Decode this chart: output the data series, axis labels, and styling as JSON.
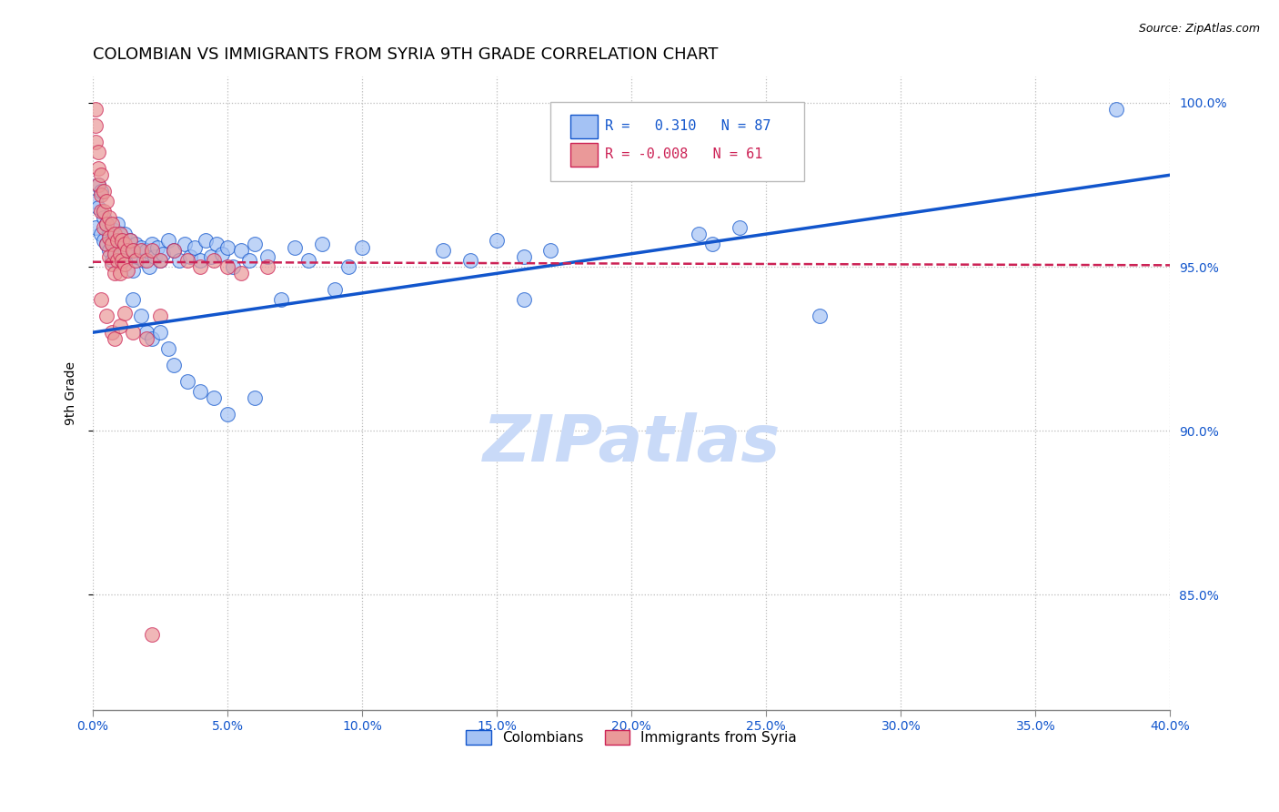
{
  "title": "COLOMBIAN VS IMMIGRANTS FROM SYRIA 9TH GRADE CORRELATION CHART",
  "source": "Source: ZipAtlas.com",
  "ylabel": "9th Grade",
  "x_min": 0.0,
  "x_max": 0.4,
  "y_min": 0.815,
  "y_max": 1.008,
  "legend_blue_R": "0.310",
  "legend_blue_N": "87",
  "legend_pink_R": "-0.008",
  "legend_pink_N": "61",
  "blue_color": "#a4c2f4",
  "pink_color": "#ea9999",
  "trend_blue_color": "#1155cc",
  "trend_pink_color": "#cc2255",
  "grid_color": "#bbbbbb",
  "watermark_color": "#c9daf8",
  "blue_trend_x": [
    0.0,
    0.4
  ],
  "blue_trend_y": [
    0.93,
    0.978
  ],
  "pink_trend_x": [
    0.0,
    0.4
  ],
  "pink_trend_y": [
    0.9515,
    0.9505
  ],
  "blue_points": [
    [
      0.001,
      0.97
    ],
    [
      0.001,
      0.962
    ],
    [
      0.002,
      0.968
    ],
    [
      0.002,
      0.975
    ],
    [
      0.003,
      0.96
    ],
    [
      0.003,
      0.973
    ],
    [
      0.004,
      0.965
    ],
    [
      0.004,
      0.958
    ],
    [
      0.005,
      0.963
    ],
    [
      0.005,
      0.957
    ],
    [
      0.006,
      0.96
    ],
    [
      0.006,
      0.955
    ],
    [
      0.007,
      0.958
    ],
    [
      0.007,
      0.952
    ],
    [
      0.008,
      0.961
    ],
    [
      0.008,
      0.955
    ],
    [
      0.009,
      0.963
    ],
    [
      0.009,
      0.957
    ],
    [
      0.01,
      0.96
    ],
    [
      0.01,
      0.953
    ],
    [
      0.011,
      0.958
    ],
    [
      0.011,
      0.952
    ],
    [
      0.012,
      0.96
    ],
    [
      0.012,
      0.954
    ],
    [
      0.013,
      0.955
    ],
    [
      0.014,
      0.958
    ],
    [
      0.015,
      0.955
    ],
    [
      0.015,
      0.949
    ],
    [
      0.016,
      0.957
    ],
    [
      0.017,
      0.953
    ],
    [
      0.018,
      0.956
    ],
    [
      0.019,
      0.952
    ],
    [
      0.02,
      0.955
    ],
    [
      0.021,
      0.95
    ],
    [
      0.022,
      0.957
    ],
    [
      0.023,
      0.953
    ],
    [
      0.024,
      0.956
    ],
    [
      0.025,
      0.952
    ],
    [
      0.026,
      0.954
    ],
    [
      0.028,
      0.958
    ],
    [
      0.03,
      0.955
    ],
    [
      0.032,
      0.952
    ],
    [
      0.034,
      0.957
    ],
    [
      0.036,
      0.953
    ],
    [
      0.038,
      0.956
    ],
    [
      0.04,
      0.952
    ],
    [
      0.042,
      0.958
    ],
    [
      0.044,
      0.953
    ],
    [
      0.046,
      0.957
    ],
    [
      0.048,
      0.954
    ],
    [
      0.05,
      0.956
    ],
    [
      0.052,
      0.95
    ],
    [
      0.055,
      0.955
    ],
    [
      0.058,
      0.952
    ],
    [
      0.06,
      0.957
    ],
    [
      0.065,
      0.953
    ],
    [
      0.07,
      0.94
    ],
    [
      0.075,
      0.956
    ],
    [
      0.08,
      0.952
    ],
    [
      0.085,
      0.957
    ],
    [
      0.09,
      0.943
    ],
    [
      0.095,
      0.95
    ],
    [
      0.1,
      0.956
    ],
    [
      0.13,
      0.955
    ],
    [
      0.14,
      0.952
    ],
    [
      0.15,
      0.958
    ],
    [
      0.16,
      0.953
    ],
    [
      0.17,
      0.955
    ],
    [
      0.225,
      0.96
    ],
    [
      0.23,
      0.957
    ],
    [
      0.24,
      0.962
    ],
    [
      0.27,
      0.935
    ],
    [
      0.16,
      0.94
    ],
    [
      0.015,
      0.94
    ],
    [
      0.018,
      0.935
    ],
    [
      0.02,
      0.93
    ],
    [
      0.022,
      0.928
    ],
    [
      0.025,
      0.93
    ],
    [
      0.028,
      0.925
    ],
    [
      0.03,
      0.92
    ],
    [
      0.035,
      0.915
    ],
    [
      0.04,
      0.912
    ],
    [
      0.045,
      0.91
    ],
    [
      0.05,
      0.905
    ],
    [
      0.06,
      0.91
    ],
    [
      0.38,
      0.998
    ]
  ],
  "pink_points": [
    [
      0.001,
      0.998
    ],
    [
      0.001,
      0.993
    ],
    [
      0.001,
      0.988
    ],
    [
      0.002,
      0.985
    ],
    [
      0.002,
      0.98
    ],
    [
      0.002,
      0.975
    ],
    [
      0.003,
      0.978
    ],
    [
      0.003,
      0.972
    ],
    [
      0.003,
      0.967
    ],
    [
      0.004,
      0.973
    ],
    [
      0.004,
      0.967
    ],
    [
      0.004,
      0.962
    ],
    [
      0.005,
      0.97
    ],
    [
      0.005,
      0.963
    ],
    [
      0.005,
      0.957
    ],
    [
      0.006,
      0.965
    ],
    [
      0.006,
      0.959
    ],
    [
      0.006,
      0.953
    ],
    [
      0.007,
      0.963
    ],
    [
      0.007,
      0.957
    ],
    [
      0.007,
      0.951
    ],
    [
      0.008,
      0.96
    ],
    [
      0.008,
      0.954
    ],
    [
      0.008,
      0.948
    ],
    [
      0.009,
      0.958
    ],
    [
      0.009,
      0.952
    ],
    [
      0.01,
      0.96
    ],
    [
      0.01,
      0.954
    ],
    [
      0.01,
      0.948
    ],
    [
      0.011,
      0.958
    ],
    [
      0.011,
      0.952
    ],
    [
      0.012,
      0.957
    ],
    [
      0.012,
      0.951
    ],
    [
      0.013,
      0.955
    ],
    [
      0.013,
      0.949
    ],
    [
      0.014,
      0.958
    ],
    [
      0.015,
      0.955
    ],
    [
      0.016,
      0.952
    ],
    [
      0.018,
      0.955
    ],
    [
      0.02,
      0.952
    ],
    [
      0.022,
      0.955
    ],
    [
      0.025,
      0.952
    ],
    [
      0.03,
      0.955
    ],
    [
      0.035,
      0.952
    ],
    [
      0.04,
      0.95
    ],
    [
      0.045,
      0.952
    ],
    [
      0.05,
      0.95
    ],
    [
      0.055,
      0.948
    ],
    [
      0.065,
      0.95
    ],
    [
      0.003,
      0.94
    ],
    [
      0.005,
      0.935
    ],
    [
      0.007,
      0.93
    ],
    [
      0.008,
      0.928
    ],
    [
      0.01,
      0.932
    ],
    [
      0.012,
      0.936
    ],
    [
      0.015,
      0.93
    ],
    [
      0.02,
      0.928
    ],
    [
      0.025,
      0.935
    ],
    [
      0.022,
      0.838
    ]
  ]
}
